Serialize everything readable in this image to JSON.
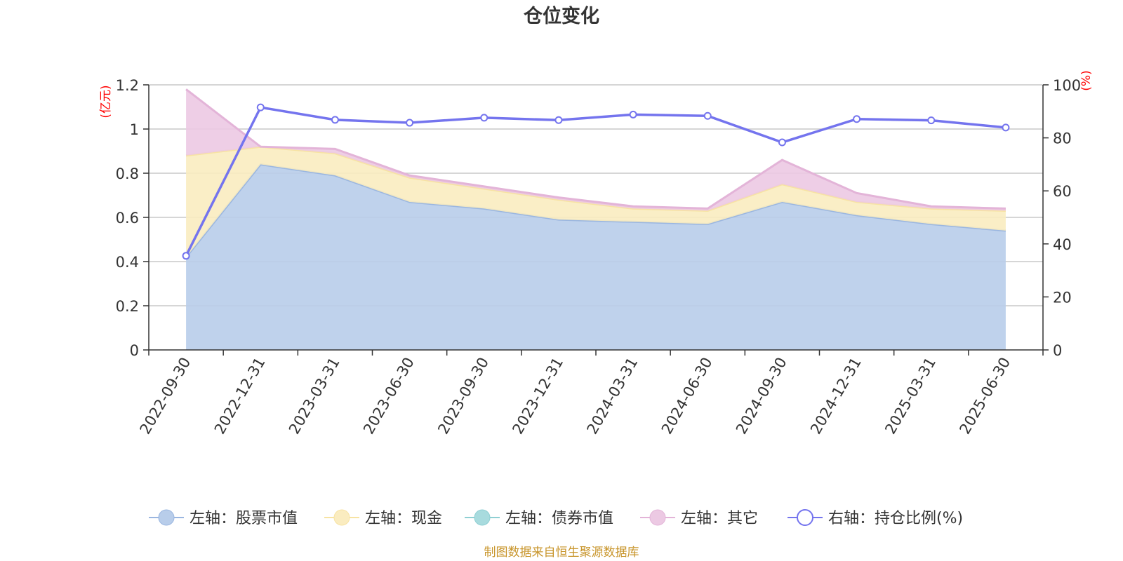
{
  "chart_data": {
    "type": "area",
    "title": "仓位变化",
    "left_unit": "(亿元)",
    "right_unit": "(%)",
    "categories": [
      "2022-09-30",
      "2022-12-31",
      "2023-03-31",
      "2023-06-30",
      "2023-09-30",
      "2023-12-31",
      "2024-03-31",
      "2024-06-30",
      "2024-09-30",
      "2024-12-31",
      "2025-03-31",
      "2025-06-30"
    ],
    "left_axis": {
      "ylim": [
        0,
        1.2
      ],
      "ticks": [
        "0",
        "0.2",
        "0.4",
        "0.6",
        "0.8",
        "1",
        "1.2"
      ]
    },
    "right_axis": {
      "ylim": [
        0,
        100
      ],
      "ticks": [
        "0",
        "20",
        "40",
        "60",
        "80",
        "100"
      ]
    },
    "stacked_series": [
      {
        "name": "左轴：股票市值",
        "color": "#9ab6e0",
        "fill": "#b8cdea",
        "values": [
          0.42,
          0.84,
          0.79,
          0.67,
          0.64,
          0.59,
          0.58,
          0.57,
          0.67,
          0.61,
          0.57,
          0.54
        ]
      },
      {
        "name": "左轴：现金",
        "color": "#f7e3a3",
        "fill": "#faecc0",
        "values": [
          0.46,
          0.08,
          0.1,
          0.11,
          0.09,
          0.09,
          0.06,
          0.06,
          0.08,
          0.06,
          0.07,
          0.09
        ]
      },
      {
        "name": "左轴：债券市值",
        "color": "#8fcfd3",
        "fill": "#a8dbde",
        "values": [
          0,
          0,
          0,
          0,
          0,
          0,
          0,
          0,
          0,
          0,
          0,
          0
        ]
      },
      {
        "name": "左轴：其它",
        "color": "#e3b4d8",
        "fill": "#ecc9e3",
        "values": [
          0.3,
          0.0,
          0.02,
          0.01,
          0.01,
          0.01,
          0.01,
          0.01,
          0.11,
          0.04,
          0.01,
          0.01
        ]
      }
    ],
    "line_series": {
      "name": "右轴：持仓比例(%)",
      "color": "#7474ee",
      "values": [
        35.5,
        91.5,
        86.8,
        85.7,
        87.6,
        86.7,
        88.8,
        88.3,
        78.3,
        87.1,
        86.6,
        83.9
      ]
    },
    "grid": true,
    "legend_position": "bottom",
    "source_note": "制图数据来自恒生聚源数据库"
  }
}
